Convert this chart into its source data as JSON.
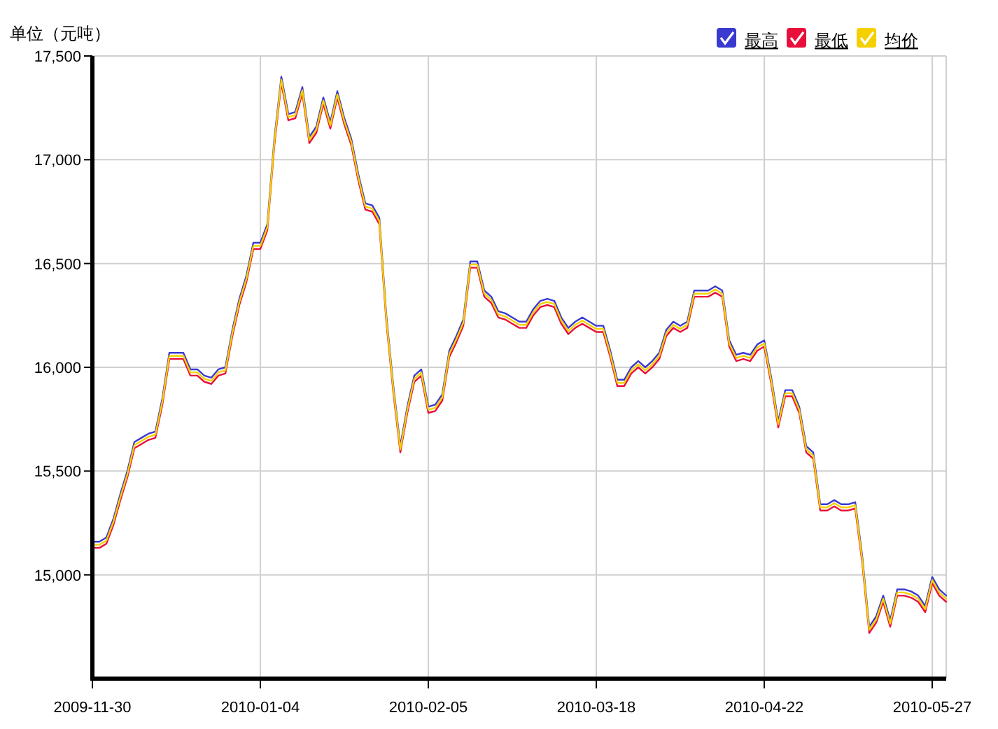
{
  "chart_data": {
    "type": "line",
    "ylabel": "单位（元吨）",
    "categories": [
      "2009-11-30",
      null,
      null,
      null,
      null,
      null,
      null,
      null,
      null,
      null,
      null,
      null,
      null,
      null,
      null,
      null,
      null,
      null,
      null,
      null,
      null,
      null,
      null,
      null,
      "2010-01-04",
      null,
      null,
      null,
      null,
      null,
      null,
      null,
      null,
      null,
      null,
      null,
      null,
      null,
      null,
      null,
      null,
      null,
      null,
      null,
      null,
      null,
      null,
      null,
      "2010-02-05",
      null,
      null,
      null,
      null,
      null,
      null,
      null,
      null,
      null,
      null,
      null,
      null,
      null,
      null,
      null,
      null,
      null,
      null,
      null,
      null,
      null,
      null,
      null,
      "2010-03-18",
      null,
      null,
      null,
      null,
      null,
      null,
      null,
      null,
      null,
      null,
      null,
      null,
      null,
      null,
      null,
      null,
      null,
      null,
      null,
      null,
      null,
      null,
      null,
      "2010-04-22",
      null,
      null,
      null,
      null,
      null,
      null,
      null,
      null,
      null,
      null,
      null,
      null,
      null,
      null,
      null,
      null,
      null,
      null,
      null,
      null,
      null,
      null,
      null,
      "2010-05-27",
      null,
      null
    ],
    "ylim": [
      14500,
      17500
    ],
    "yticks": [
      {
        "value": 15000,
        "label": "15,000"
      },
      {
        "value": 15500,
        "label": "15,500"
      },
      {
        "value": 16000,
        "label": "16,000"
      },
      {
        "value": 16500,
        "label": "16,500"
      },
      {
        "value": 17000,
        "label": "17,000"
      },
      {
        "value": 17500,
        "label": "17,500"
      }
    ],
    "grid": true,
    "legend": "top right",
    "line_style": "solid",
    "marker": "none",
    "series": [
      {
        "name": "最高",
        "color": "#3a3ad0",
        "values": [
          15160,
          15160,
          15180,
          15270,
          15390,
          15500,
          15640,
          15660,
          15680,
          15690,
          15850,
          16070,
          16070,
          16070,
          15990,
          15990,
          15960,
          15950,
          15990,
          16000,
          16180,
          16330,
          16440,
          16600,
          16600,
          16690,
          17100,
          17400,
          17220,
          17230,
          17350,
          17110,
          17160,
          17300,
          17180,
          17330,
          17200,
          17100,
          16930,
          16790,
          16780,
          16720,
          16250,
          15910,
          15620,
          15810,
          15960,
          15990,
          15810,
          15820,
          15870,
          16080,
          16150,
          16230,
          16510,
          16510,
          16370,
          16340,
          16270,
          16260,
          16240,
          16220,
          16220,
          16280,
          16320,
          16330,
          16320,
          16240,
          16190,
          16220,
          16240,
          16220,
          16200,
          16200,
          16080,
          15940,
          15940,
          16000,
          16030,
          16000,
          16030,
          16070,
          16180,
          16220,
          16200,
          16220,
          16370,
          16370,
          16370,
          16390,
          16370,
          16130,
          16060,
          16070,
          16060,
          16110,
          16130,
          15950,
          15740,
          15890,
          15890,
          15810,
          15620,
          15590,
          15340,
          15340,
          15360,
          15340,
          15340,
          15350,
          15090,
          14750,
          14800,
          14900,
          14780,
          14930,
          14930,
          14920,
          14900,
          14850,
          14990,
          14930,
          14900
        ]
      },
      {
        "name": "最低",
        "color": "#e8103a",
        "values": [
          15130,
          15130,
          15150,
          15240,
          15360,
          15470,
          15610,
          15630,
          15650,
          15660,
          15820,
          16040,
          16040,
          16040,
          15960,
          15960,
          15930,
          15920,
          15960,
          15970,
          16150,
          16300,
          16410,
          16570,
          16570,
          16660,
          17070,
          17370,
          17190,
          17200,
          17320,
          17080,
          17130,
          17270,
          17150,
          17300,
          17170,
          17070,
          16900,
          16760,
          16750,
          16690,
          16220,
          15880,
          15590,
          15780,
          15930,
          15960,
          15780,
          15790,
          15840,
          16050,
          16120,
          16200,
          16480,
          16480,
          16340,
          16310,
          16240,
          16230,
          16210,
          16190,
          16190,
          16250,
          16290,
          16300,
          16290,
          16210,
          16160,
          16190,
          16210,
          16190,
          16170,
          16170,
          16050,
          15910,
          15910,
          15970,
          16000,
          15970,
          16000,
          16040,
          16150,
          16190,
          16170,
          16190,
          16340,
          16340,
          16340,
          16360,
          16340,
          16100,
          16030,
          16040,
          16030,
          16080,
          16100,
          15920,
          15710,
          15860,
          15860,
          15780,
          15590,
          15560,
          15310,
          15310,
          15330,
          15310,
          15310,
          15320,
          15060,
          14720,
          14770,
          14870,
          14750,
          14900,
          14900,
          14890,
          14870,
          14820,
          14960,
          14900,
          14870
        ]
      },
      {
        "name": "均价",
        "color": "#f5d000",
        "values": [
          15145,
          15145,
          15165,
          15255,
          15375,
          15485,
          15625,
          15645,
          15665,
          15675,
          15835,
          16055,
          16055,
          16055,
          15975,
          15975,
          15945,
          15935,
          15975,
          15985,
          16165,
          16315,
          16425,
          16585,
          16585,
          16675,
          17085,
          17385,
          17205,
          17215,
          17335,
          17095,
          17145,
          17285,
          17165,
          17315,
          17185,
          17085,
          16915,
          16775,
          16765,
          16705,
          16235,
          15895,
          15605,
          15795,
          15945,
          15975,
          15795,
          15805,
          15855,
          16065,
          16135,
          16215,
          16495,
          16495,
          16355,
          16325,
          16255,
          16245,
          16225,
          16205,
          16205,
          16265,
          16305,
          16315,
          16305,
          16225,
          16175,
          16205,
          16225,
          16205,
          16185,
          16185,
          16065,
          15925,
          15925,
          15985,
          16015,
          15985,
          16015,
          16055,
          16165,
          16205,
          16185,
          16205,
          16355,
          16355,
          16355,
          16375,
          16355,
          16115,
          16045,
          16055,
          16045,
          16095,
          16115,
          15935,
          15725,
          15875,
          15875,
          15795,
          15605,
          15575,
          15325,
          15325,
          15345,
          15325,
          15325,
          15335,
          15075,
          14735,
          14785,
          14885,
          14765,
          14915,
          14915,
          14905,
          14885,
          14835,
          14975,
          14915,
          14885
        ]
      }
    ]
  }
}
